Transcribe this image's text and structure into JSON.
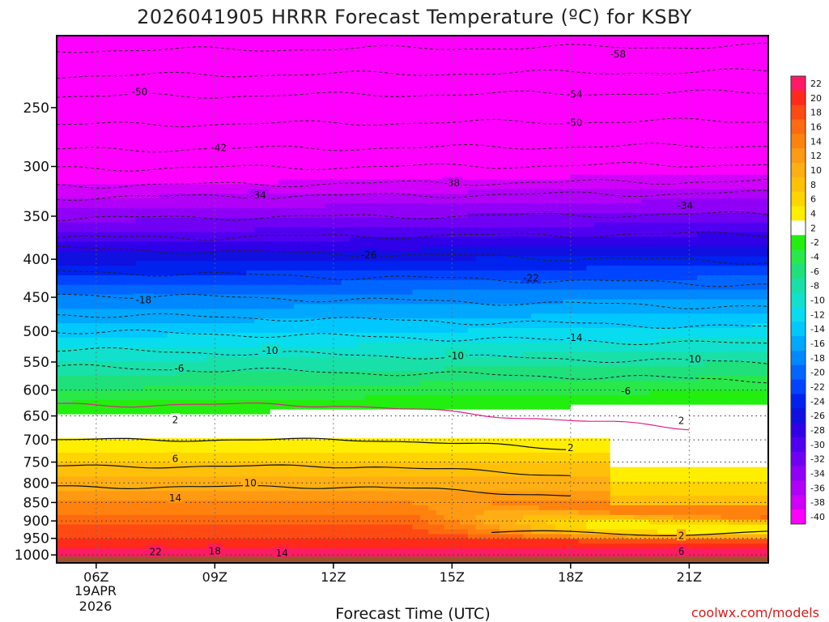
{
  "chart_data": {
    "type": "heatmap",
    "title": "2026041905 HRRR Forecast Temperature (ºC) for KSBY",
    "xlabel": "Forecast Time (UTC)",
    "ylabel": "",
    "x_ticks": [
      "06Z",
      "09Z",
      "12Z",
      "15Z",
      "18Z",
      "21Z"
    ],
    "x_date_line1": "19APR",
    "x_date_line2": "2026",
    "x_range_hours": [
      5,
      23
    ],
    "y_ticks": [
      250,
      300,
      350,
      400,
      450,
      500,
      550,
      600,
      650,
      700,
      750,
      800,
      850,
      900,
      950,
      1000
    ],
    "y_range_hpa": [
      1025,
      200
    ],
    "ground_pressure_hpa": 1005,
    "colorbar": {
      "levels": [
        22,
        20,
        18,
        16,
        14,
        12,
        10,
        8,
        6,
        4,
        2,
        -2,
        -4,
        -6,
        -8,
        -10,
        -12,
        -14,
        -16,
        -18,
        -20,
        -22,
        -24,
        -26,
        -28,
        -30,
        -32,
        -34,
        -36,
        -38,
        -40
      ],
      "colors": [
        "#ff1a66",
        "#ff2a1a",
        "#ff4a14",
        "#ff6a10",
        "#ff820e",
        "#ff9a12",
        "#ffae14",
        "#ffc00a",
        "#ffd400",
        "#ffee00",
        "#ffffff",
        "#22ee10",
        "#28e84a",
        "#1fe07a",
        "#18e0a8",
        "#10e0cc",
        "#08dcee",
        "#00c8ff",
        "#00a8ff",
        "#0088ff",
        "#0066ff",
        "#0044ff",
        "#0022ee",
        "#1010e0",
        "#3000e8",
        "#5000f0",
        "#7000f4",
        "#9000f6",
        "#b000f8",
        "#d000fa",
        "#ff00ff"
      ],
      "ground_color": "#a0522d"
    },
    "profile_hours": [
      5,
      8,
      11,
      14,
      17,
      20,
      23
    ],
    "profile_p_850": [
      810,
      810,
      810,
      830,
      860,
      880,
      890
    ],
    "contour_labels": [
      {
        "text": "-58",
        "t": 19.2,
        "p": 212
      },
      {
        "text": "-50",
        "t": 7.1,
        "p": 238
      },
      {
        "text": "-54",
        "t": 18.1,
        "p": 240
      },
      {
        "text": "-50",
        "t": 18.1,
        "p": 262
      },
      {
        "text": "-42",
        "t": 9.1,
        "p": 283
      },
      {
        "text": "-38",
        "t": 15.0,
        "p": 316
      },
      {
        "text": "-34",
        "t": 10.1,
        "p": 328
      },
      {
        "text": "-34",
        "t": 20.9,
        "p": 339
      },
      {
        "text": "-26",
        "t": 12.9,
        "p": 395
      },
      {
        "text": "-22",
        "t": 17.0,
        "p": 424
      },
      {
        "text": "-18",
        "t": 7.2,
        "p": 454
      },
      {
        "text": "-14",
        "t": 18.1,
        "p": 510
      },
      {
        "text": "-10",
        "t": 10.4,
        "p": 531
      },
      {
        "text": "-10",
        "t": 15.1,
        "p": 540
      },
      {
        "text": "-10",
        "t": 21.1,
        "p": 545
      },
      {
        "text": "-6",
        "t": 8.1,
        "p": 561
      },
      {
        "text": "-6",
        "t": 19.4,
        "p": 602
      },
      {
        "text": "2",
        "t": 8.0,
        "p": 658
      },
      {
        "text": "2",
        "t": 20.8,
        "p": 660
      },
      {
        "text": "2",
        "t": 18.0,
        "p": 718
      },
      {
        "text": "6",
        "t": 8.0,
        "p": 742
      },
      {
        "text": "10",
        "t": 9.9,
        "p": 800
      },
      {
        "text": "14",
        "t": 8.0,
        "p": 838
      },
      {
        "text": "2",
        "t": 20.8,
        "p": 942
      },
      {
        "text": "18",
        "t": 9.0,
        "p": 988
      },
      {
        "text": "14",
        "t": 10.7,
        "p": 994
      },
      {
        "text": "22",
        "t": 7.5,
        "p": 991
      },
      {
        "text": "6",
        "t": 20.8,
        "p": 990
      }
    ]
  },
  "credit": "coolwx.com/models"
}
